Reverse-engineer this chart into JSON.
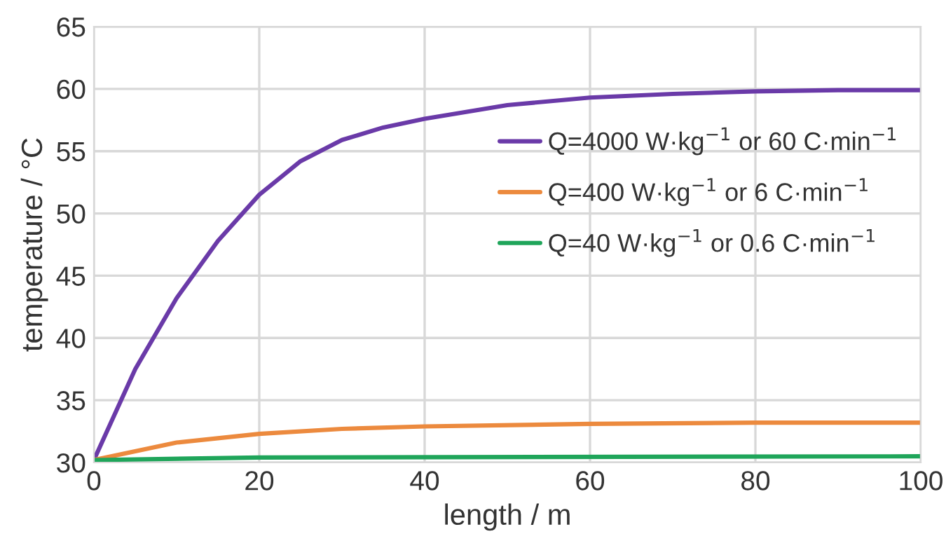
{
  "chart_data": {
    "type": "line",
    "xlabel": "length / m",
    "ylabel": "temperature / °C",
    "xlim": [
      0,
      100
    ],
    "xticks": [
      0,
      20,
      40,
      60,
      80,
      100
    ],
    "ylim": [
      30,
      65
    ],
    "yticks": [
      30,
      35,
      40,
      45,
      50,
      55,
      60,
      65
    ],
    "grid": true,
    "legend": "right",
    "line_style": "solid",
    "marker": "none",
    "series": [
      {
        "name": "Q=4000 W·kg$^{−1}$ or 60 C·min$^{−1}$",
        "color": "#6a3aa8",
        "x": [
          0,
          5,
          10,
          15,
          20,
          25,
          30,
          35,
          40,
          50,
          60,
          70,
          80,
          90,
          100
        ],
        "values": [
          30.2,
          37.5,
          43.2,
          47.8,
          51.5,
          54.2,
          55.9,
          56.9,
          57.6,
          58.7,
          59.3,
          59.6,
          59.8,
          59.9,
          59.9
        ]
      },
      {
        "name": "Q=400 W·kg$^{−1}$ or 6 C·min$^{−1}$",
        "color": "#ec8a3e",
        "x": [
          0,
          10,
          20,
          30,
          40,
          60,
          80,
          100
        ],
        "values": [
          30.2,
          31.6,
          32.3,
          32.7,
          32.9,
          33.1,
          33.2,
          33.2
        ]
      },
      {
        "name": "Q=40 W·kg$^{−1}$ or 0.6 C·min$^{−1}$",
        "color": "#1fa55a",
        "x": [
          0,
          20,
          100
        ],
        "values": [
          30.2,
          30.4,
          30.5
        ]
      }
    ]
  }
}
